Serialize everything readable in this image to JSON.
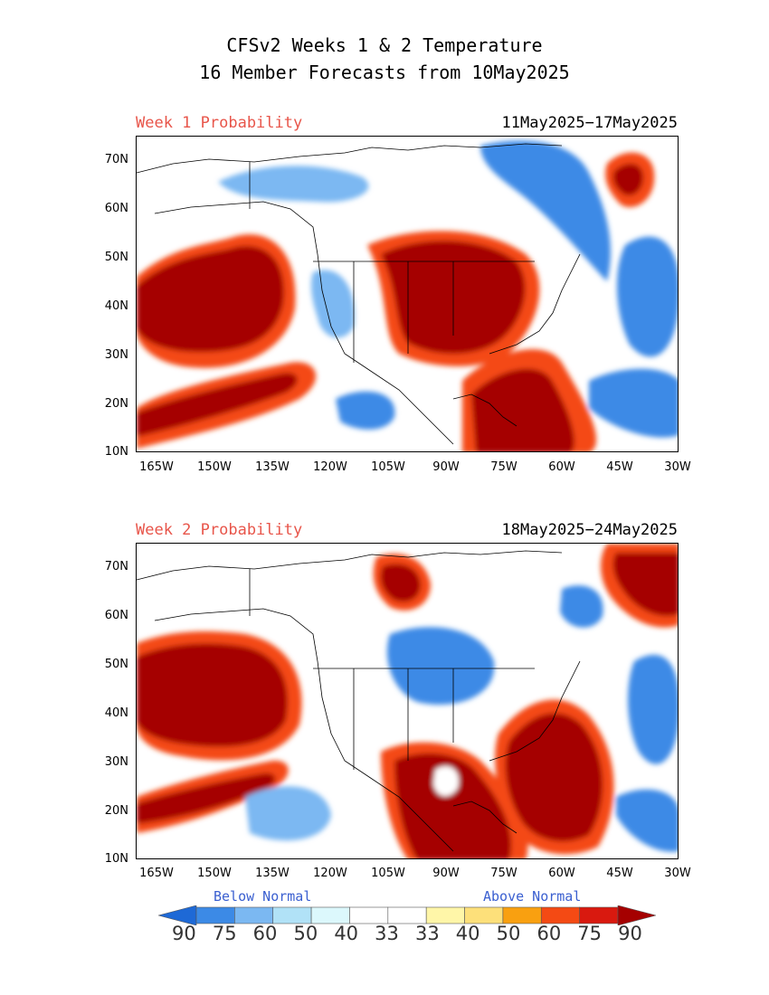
{
  "title_line1": "CFSv2 Weeks 1 & 2 Temperature",
  "title_line2": "16 Member Forecasts from 10May2025",
  "panels": [
    {
      "label": "Week 1 Probability",
      "dates": "11May2025−17May2025"
    },
    {
      "label": "Week 2 Probability",
      "dates": "18May2025−24May2025"
    }
  ],
  "lat_ticks": [
    "70N",
    "60N",
    "50N",
    "40N",
    "30N",
    "20N",
    "10N"
  ],
  "lon_ticks": [
    "165W",
    "150W",
    "135W",
    "120W",
    "105W",
    "90W",
    "75W",
    "60W",
    "45W",
    "30W"
  ],
  "colorbar": {
    "below_label": "Below Normal",
    "above_label": "Above Normal",
    "labels": [
      "90",
      "75",
      "60",
      "50",
      "40",
      "33",
      "33",
      "40",
      "50",
      "60",
      "75",
      "90"
    ],
    "colors": [
      "#1e69d6",
      "#3c8ae6",
      "#7bb8f2",
      "#b1e2f7",
      "#dcf8fc",
      "#ffffff",
      "#ffffff",
      "#fff6a8",
      "#fde07a",
      "#f9a010",
      "#f44a14",
      "#d9190f",
      "#a50000"
    ]
  }
}
